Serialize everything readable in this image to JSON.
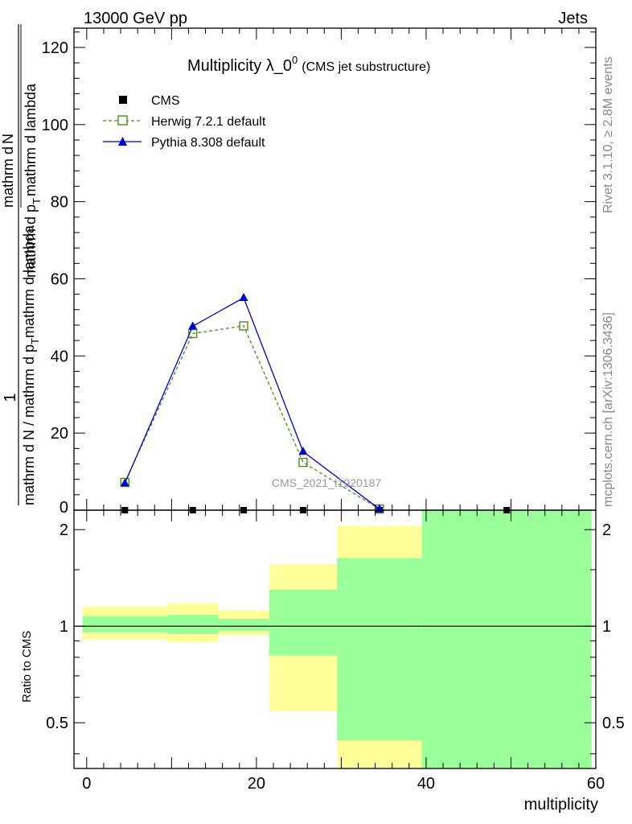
{
  "header": {
    "left": "13000 GeV pp",
    "right": "Jets"
  },
  "side_labels": {
    "rivet": "Rivet 3.1.10, ≥ 2.8M events",
    "mcplots": "mcplots.cern.ch [arXiv:1306.3436]"
  },
  "chart_data": [
    {
      "type": "line",
      "title_main": "Multiplicity λ_0",
      "title_sup": "0",
      "title_sub": "(CMS jet substructure)",
      "watermark": "CMS_2021_I1920187",
      "ylabel_numerator": "1",
      "ylabel_denominator": "mathrm d N / mathrm d p",
      "ylabel_denominator_sub": "T",
      "ylabel_denominator_tail": "mathrm d lambda",
      "ylabel_top_num": "mathrm d",
      "ylabel_top_N": "N",
      "ylabel_top_den": "mathrm d p",
      "ylabel_top_den_sub": "T",
      "ylabel_top_den_tail": "mathrm d lambda",
      "xlim": [
        -1.5,
        60
      ],
      "ylim": [
        0,
        125
      ],
      "yticks": [
        20,
        40,
        60,
        80,
        100,
        120
      ],
      "ytick_labels": [
        "20",
        "40",
        "60",
        "80",
        "100",
        "120"
      ],
      "y_zero_label": "0",
      "series": [
        {
          "name": "CMS",
          "color": "#000000",
          "marker": "square",
          "x": [
            4.5,
            12.5,
            18.5,
            25.5,
            34.5,
            49.5
          ],
          "y": [
            0,
            0,
            0,
            0,
            0,
            0
          ]
        },
        {
          "name": "Herwig 7.2.1 default",
          "color": "#4c8c1c",
          "marker": "open-square",
          "dash": true,
          "x": [
            4.5,
            12.5,
            18.5,
            25.5,
            34.5
          ],
          "y": [
            7.2,
            45.8,
            47.8,
            12.4,
            0.3
          ]
        },
        {
          "name": "Pythia 8.308 default",
          "color": "#0000d0",
          "marker": "triangle",
          "x": [
            4.5,
            12.5,
            18.5,
            25.5,
            34.5
          ],
          "y": [
            7.0,
            47.7,
            55.1,
            15.2,
            0.3
          ]
        }
      ],
      "legend_placement": "top-left"
    },
    {
      "type": "area",
      "ylabel": "Ratio to CMS",
      "xlabel": "multiplicity",
      "xlim": [
        -1.5,
        60
      ],
      "ylim": [
        0.36,
        2.3
      ],
      "xticks": [
        0,
        20,
        40,
        60
      ],
      "xtick_labels": [
        "0",
        "20",
        "40",
        "60"
      ],
      "yticks": [
        0.5,
        1,
        2
      ],
      "ytick_labels": [
        "0.5",
        "1",
        "2"
      ],
      "reference_line": 1,
      "bands": [
        {
          "x0": -0.5,
          "x1": 9.5,
          "yellow": [
            0.91,
            1.15
          ],
          "green": [
            0.955,
            1.075
          ]
        },
        {
          "x0": 9.5,
          "x1": 15.5,
          "yellow": [
            0.89,
            1.18
          ],
          "green": [
            0.945,
            1.085
          ]
        },
        {
          "x0": 15.5,
          "x1": 21.5,
          "yellow": [
            0.935,
            1.12
          ],
          "green": [
            0.965,
            1.055
          ]
        },
        {
          "x0": 21.5,
          "x1": 29.5,
          "yellow": [
            0.545,
            1.56
          ],
          "green": [
            0.81,
            1.3
          ]
        },
        {
          "x0": 29.5,
          "x1": 39.5,
          "yellow": [
            0.36,
            2.05
          ],
          "green": [
            0.44,
            1.63
          ]
        },
        {
          "x0": 39.5,
          "x1": 59.5,
          "yellow": [
            0.36,
            2.3
          ],
          "green": [
            0.36,
            2.3
          ]
        }
      ],
      "band_colors": {
        "yellow": "#ffff99",
        "green": "#99ff99"
      }
    }
  ]
}
